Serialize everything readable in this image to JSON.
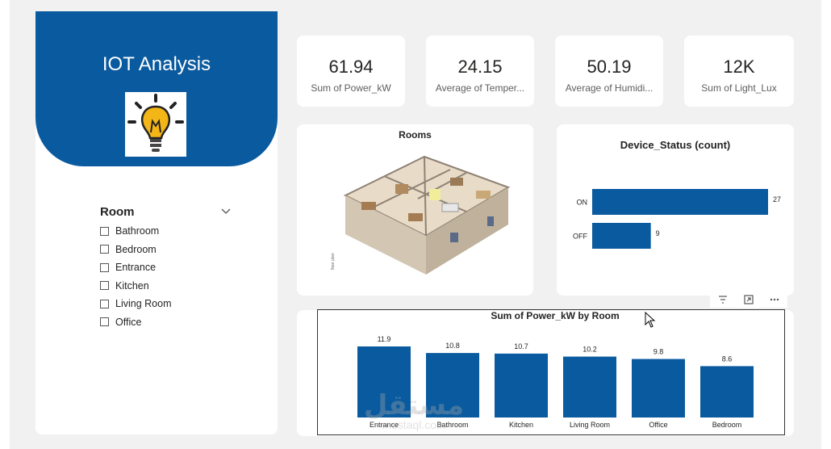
{
  "brand": {
    "title": "IOT Analysis",
    "icon": "lightbulb-icon"
  },
  "slicer": {
    "title": "Room",
    "items": [
      {
        "label": "Bathroom",
        "checked": false
      },
      {
        "label": "Bedroom",
        "checked": false
      },
      {
        "label": "Entrance",
        "checked": false
      },
      {
        "label": "Kitchen",
        "checked": false
      },
      {
        "label": "Living Room",
        "checked": false
      },
      {
        "label": "Office",
        "checked": false
      }
    ]
  },
  "kpis": [
    {
      "value": "61.94",
      "label": "Sum of Power_kW"
    },
    {
      "value": "24.15",
      "label": "Average of Temper..."
    },
    {
      "value": "50.19",
      "label": "Average of Humidi..."
    },
    {
      "value": "12K",
      "label": "Sum of Light_Lux"
    }
  ],
  "rooms_visual": {
    "title": "Rooms"
  },
  "visual_header": {
    "icons": [
      "filter-icon",
      "focus-mode-icon",
      "more-options-icon"
    ]
  },
  "watermark": {
    "arabic": "مستقل",
    "latin": "mostaql.com"
  },
  "colors": {
    "brand": "#0a5a9f",
    "bar": "#0a5a9f",
    "background": "#f1f1f1"
  },
  "chart_data": [
    {
      "type": "bar",
      "orientation": "horizontal",
      "title": "Device_Status (count)",
      "categories": [
        "ON",
        "OFF"
      ],
      "values": [
        27,
        9
      ],
      "data_labels": true
    },
    {
      "type": "bar",
      "orientation": "vertical",
      "title": "Sum of Power_kW by Room",
      "categories": [
        "Entrance",
        "Bathroom",
        "Kitchen",
        "Living Room",
        "Office",
        "Bedroom"
      ],
      "values": [
        11.9,
        10.8,
        10.7,
        10.2,
        9.8,
        8.6
      ],
      "data_labels": true
    }
  ]
}
